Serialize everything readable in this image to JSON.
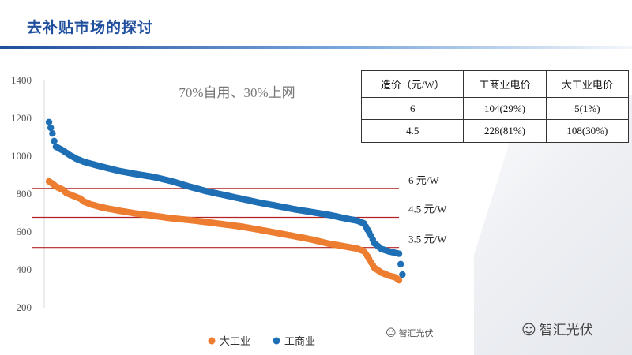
{
  "header": {
    "title": "去补贴市场的探讨"
  },
  "table": {
    "headers": [
      "造价（元/W）",
      "工商业电价",
      "大工业电价"
    ],
    "rows": [
      [
        "6",
        "104(29%)",
        "5(1%)"
      ],
      [
        "4.5",
        "228(81%)",
        "108(30%)"
      ]
    ]
  },
  "watermarks": {
    "small": "智汇光伏",
    "large": "智汇光伏",
    "icon": "wechat-icon"
  },
  "colors": {
    "industrial": "#ed7d31",
    "commercial": "#1f6fb5",
    "reference_line": "#b22222",
    "title": "#1f4e9c"
  },
  "chart_data": {
    "type": "scatter",
    "title": "",
    "annotation": "70%自用、30%上网",
    "xlabel": "",
    "ylabel": "",
    "ylim": [
      200,
      1400
    ],
    "yticks": [
      200,
      400,
      600,
      800,
      1000,
      1200,
      1400
    ],
    "xlim": [
      0,
      100
    ],
    "grid": false,
    "legend_position": "bottom",
    "reference_lines": [
      {
        "label": "6 元/W",
        "value": 830
      },
      {
        "label": "4.5 元/W",
        "value": 677
      },
      {
        "label": "3.5 元/W",
        "value": 518
      }
    ],
    "series": [
      {
        "name": "大工业",
        "color": "#ed7d31",
        "points": [
          [
            0,
            867
          ],
          [
            1,
            855
          ],
          [
            2,
            840
          ],
          [
            4,
            822
          ],
          [
            5,
            805
          ],
          [
            7,
            790
          ],
          [
            9,
            775
          ],
          [
            10,
            760
          ],
          [
            12,
            745
          ],
          [
            15,
            730
          ],
          [
            20,
            712
          ],
          [
            25,
            697
          ],
          [
            30,
            685
          ],
          [
            35,
            672
          ],
          [
            40,
            663
          ],
          [
            45,
            652
          ],
          [
            50,
            640
          ],
          [
            55,
            628
          ],
          [
            60,
            612
          ],
          [
            65,
            595
          ],
          [
            70,
            578
          ],
          [
            75,
            560
          ],
          [
            80,
            538
          ],
          [
            85,
            522
          ],
          [
            88,
            512
          ],
          [
            90,
            498
          ],
          [
            91,
            472
          ],
          [
            92,
            440
          ],
          [
            93,
            410
          ],
          [
            95,
            385
          ],
          [
            97,
            370
          ],
          [
            99,
            360
          ],
          [
            100,
            345
          ]
        ]
      },
      {
        "name": "工商业",
        "color": "#1f6fb5",
        "points": [
          [
            0,
            1180
          ],
          [
            0.5,
            1150
          ],
          [
            1,
            1120
          ],
          [
            1.5,
            1080
          ],
          [
            2,
            1050
          ],
          [
            4,
            1030
          ],
          [
            6,
            1005
          ],
          [
            8,
            985
          ],
          [
            10,
            970
          ],
          [
            15,
            945
          ],
          [
            20,
            922
          ],
          [
            25,
            905
          ],
          [
            30,
            890
          ],
          [
            35,
            868
          ],
          [
            40,
            840
          ],
          [
            45,
            815
          ],
          [
            50,
            795
          ],
          [
            55,
            775
          ],
          [
            60,
            755
          ],
          [
            65,
            738
          ],
          [
            70,
            720
          ],
          [
            75,
            705
          ],
          [
            80,
            690
          ],
          [
            85,
            670
          ],
          [
            88,
            660
          ],
          [
            90,
            645
          ],
          [
            92,
            580
          ],
          [
            93,
            540
          ],
          [
            95,
            510
          ],
          [
            97,
            498
          ],
          [
            100,
            485
          ],
          [
            101,
            375
          ]
        ]
      }
    ]
  }
}
